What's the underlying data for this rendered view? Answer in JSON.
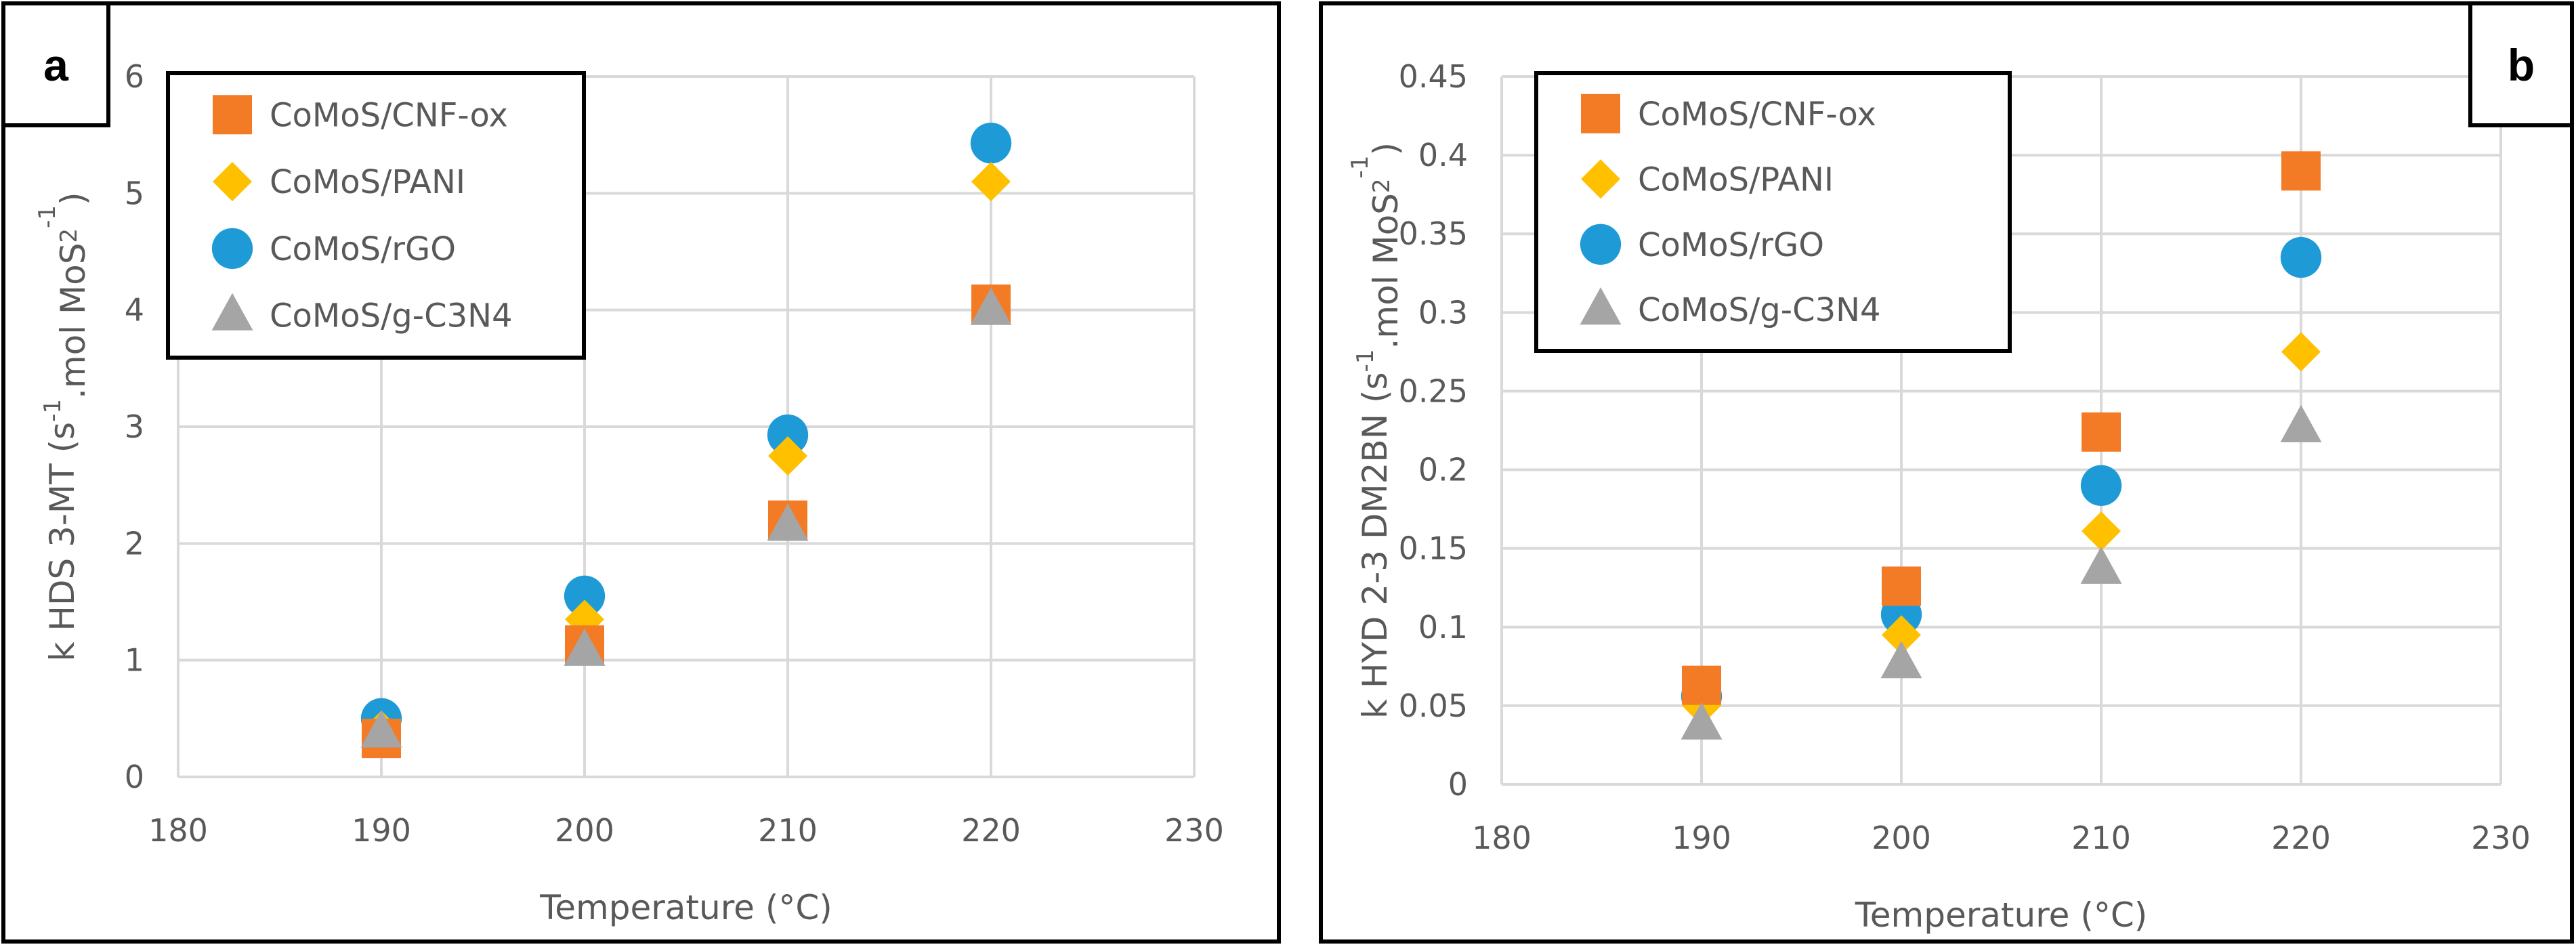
{
  "chart_data": [
    {
      "type": "scatter",
      "panel_label": "a",
      "xlabel": "Temperature (°C)",
      "ylabel_parts": [
        "k HDS 3-MT (s",
        "-1",
        ".mol MoS",
        "2",
        "-1",
        ")"
      ],
      "xlim": [
        180,
        230
      ],
      "ylim": [
        0,
        6
      ],
      "xticks": [
        180,
        190,
        200,
        210,
        220,
        230
      ],
      "yticks": [
        0,
        1,
        2,
        3,
        4,
        5,
        6
      ],
      "ytick_labels": [
        "0",
        "1",
        "2",
        "3",
        "4",
        "5",
        "6"
      ],
      "grid": true,
      "legend_position": "top-left",
      "x": [
        190,
        200,
        210,
        220
      ],
      "series": [
        {
          "name": "CoMoS/CNF-ox",
          "marker": "square",
          "color": "#F47B26",
          "values": [
            0.33,
            1.13,
            2.2,
            4.05
          ]
        },
        {
          "name": "CoMoS/PANI",
          "marker": "diamond",
          "color": "#FFC000",
          "values": [
            0.4,
            1.35,
            2.75,
            5.1
          ]
        },
        {
          "name": "CoMoS/rGO",
          "marker": "circle",
          "color": "#1E9BD7",
          "values": [
            0.5,
            1.55,
            2.93,
            5.43
          ]
        },
        {
          "name": "CoMoS/g-C3N4",
          "marker": "triangle",
          "color": "#A5A5A5",
          "values": [
            0.38,
            1.08,
            2.15,
            4.0
          ]
        }
      ]
    },
    {
      "type": "scatter",
      "panel_label": "b",
      "xlabel": "Temperature (°C)",
      "ylabel_parts": [
        "k HYD 2-3 DM2BN (s",
        "-1",
        ".mol MoS",
        "2",
        "-1",
        ")"
      ],
      "xlim": [
        180,
        230
      ],
      "ylim": [
        0,
        0.45
      ],
      "xticks": [
        180,
        190,
        200,
        210,
        220,
        230
      ],
      "yticks": [
        0,
        0.05,
        0.1,
        0.15,
        0.2,
        0.25,
        0.3,
        0.35,
        0.4,
        0.45
      ],
      "ytick_labels": [
        "0",
        "0.05",
        "0.1",
        "0.15",
        "0.2",
        "0.25",
        "0.3",
        "0.35",
        "0.4",
        "0.45"
      ],
      "grid": true,
      "legend_position": "top-left",
      "x": [
        190,
        200,
        210,
        220
      ],
      "series": [
        {
          "name": "CoMoS/CNF-ox",
          "marker": "square",
          "color": "#F47B26",
          "values": [
            0.063,
            0.126,
            0.224,
            0.39
          ]
        },
        {
          "name": "CoMoS/PANI",
          "marker": "diamond",
          "color": "#FFC000",
          "values": [
            0.05,
            0.095,
            0.161,
            0.275
          ]
        },
        {
          "name": "CoMoS/rGO",
          "marker": "circle",
          "color": "#1E9BD7",
          "values": [
            0.056,
            0.108,
            0.19,
            0.335
          ]
        },
        {
          "name": "CoMoS/g-C3N4",
          "marker": "triangle",
          "color": "#A5A5A5",
          "values": [
            0.038,
            0.077,
            0.137,
            0.227
          ]
        }
      ]
    }
  ]
}
